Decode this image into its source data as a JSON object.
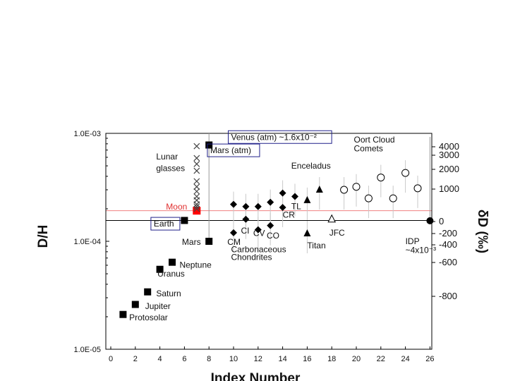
{
  "chart_data": {
    "type": "scatter",
    "title": "",
    "xlabel": "Index Number",
    "ylabel_left": "D/H",
    "ylabel_right": "δD (‰)",
    "x_range": [
      0,
      27
    ],
    "y_range": [
      1e-05,
      0.001
    ],
    "y_scale": "log",
    "x_ticks": [
      0,
      2,
      4,
      6,
      8,
      10,
      12,
      14,
      16,
      18,
      20,
      22,
      24,
      26
    ],
    "y_ticks": [
      {
        "value": 1e-05,
        "label": "1.0E-05"
      },
      {
        "value": 0.0001,
        "label": "1.0E-04"
      },
      {
        "value": 0.001,
        "label": "1.0E-03"
      }
    ],
    "right_ticks": [
      {
        "label": "4000",
        "value": 4000
      },
      {
        "label": "3000",
        "value": 3000
      },
      {
        "label": "2000",
        "value": 2000
      },
      {
        "label": "1000",
        "value": 1000
      },
      {
        "label": "0",
        "value": 0
      },
      {
        "label": "-200",
        "value": -200
      },
      {
        "label": "-400",
        "value": -400
      },
      {
        "label": "-600",
        "value": -600
      },
      {
        "label": "-800",
        "value": -800
      }
    ],
    "reference_lines": [
      {
        "label": "Moon",
        "y": 0.000192,
        "color": "#f08080"
      },
      {
        "label": "Earth",
        "y": 0.000156,
        "color": "#000000"
      }
    ],
    "series": [
      {
        "marker": "square-filled",
        "points": [
          {
            "x": 1,
            "y": 2.1e-05,
            "label": "Protosolar"
          },
          {
            "x": 2,
            "y": 2.6e-05,
            "label": "Jupiter"
          },
          {
            "x": 3,
            "y": 3.4e-05,
            "label": "Saturn"
          },
          {
            "x": 4,
            "y": 5.5e-05,
            "label": "Uranus"
          },
          {
            "x": 5,
            "y": 6.4e-05,
            "label": "Neptune"
          },
          {
            "x": 6,
            "y": 0.000156,
            "label": "Earth"
          },
          {
            "x": 8,
            "y": 0.0001,
            "label": "Mars"
          },
          {
            "x": 8,
            "y": 0.00078,
            "label": "Mars (atm)"
          }
        ]
      },
      {
        "marker": "square-red",
        "points": [
          {
            "x": 7,
            "y": 0.000192,
            "label": "Moon"
          }
        ]
      },
      {
        "marker": "x",
        "points": [
          {
            "x": 7,
            "y": 0.00076
          },
          {
            "x": 7,
            "y": 0.00059
          },
          {
            "x": 7,
            "y": 0.00052
          },
          {
            "x": 7,
            "y": 0.00045
          },
          {
            "x": 7,
            "y": 0.00036
          },
          {
            "x": 7,
            "y": 0.00032
          },
          {
            "x": 7,
            "y": 0.00029
          },
          {
            "x": 7,
            "y": 0.00026
          },
          {
            "x": 7,
            "y": 0.00024
          },
          {
            "x": 7,
            "y": 0.00022
          },
          {
            "x": 7,
            "y": 0.00021
          },
          {
            "x": 7,
            "y": 0.0002
          }
        ]
      },
      {
        "marker": "diamond",
        "points": [
          {
            "x": 10,
            "y": 0.00022
          },
          {
            "x": 10,
            "y": 0.00012
          },
          {
            "x": 11,
            "y": 0.00021
          },
          {
            "x": 11,
            "y": 0.00016
          },
          {
            "x": 12,
            "y": 0.00021
          },
          {
            "x": 12,
            "y": 0.000128
          },
          {
            "x": 13,
            "y": 0.00023
          },
          {
            "x": 13,
            "y": 0.00014
          },
          {
            "x": 14,
            "y": 0.00028
          },
          {
            "x": 14,
            "y": 0.000206
          },
          {
            "x": 15,
            "y": 0.00026
          }
        ]
      },
      {
        "marker": "triangle-filled",
        "points": [
          {
            "x": 16,
            "y": 0.00024
          },
          {
            "x": 16,
            "y": 0.000118
          },
          {
            "x": 17,
            "y": 0.0003
          }
        ]
      },
      {
        "marker": "triangle-open",
        "points": [
          {
            "x": 18,
            "y": 0.00016
          }
        ]
      },
      {
        "marker": "circle-open",
        "points": [
          {
            "x": 19,
            "y": 0.0003
          },
          {
            "x": 20,
            "y": 0.00032
          },
          {
            "x": 21,
            "y": 0.00025
          },
          {
            "x": 22,
            "y": 0.00039
          },
          {
            "x": 23,
            "y": 0.00025
          },
          {
            "x": 24,
            "y": 0.00043
          },
          {
            "x": 25,
            "y": 0.00031
          }
        ]
      },
      {
        "marker": "circle-filled",
        "points": [
          {
            "x": 26,
            "y": 0.000155
          }
        ]
      }
    ],
    "annotations": [
      {
        "text": "Protosolar",
        "x": 1.5,
        "y": 1.85e-05
      },
      {
        "text": "Jupiter",
        "x": 2.8,
        "y": 2.35e-05
      },
      {
        "text": "Saturn",
        "x": 3.7,
        "y": 3.1e-05
      },
      {
        "text": "Uranus",
        "x": 3.8,
        "y": 4.7e-05
      },
      {
        "text": "Neptune",
        "x": 5.6,
        "y": 5.7e-05
      },
      {
        "text": "Earth",
        "x": 3.5,
        "y": 0.000137,
        "boxed": true
      },
      {
        "text": "Moon",
        "x": 4.5,
        "y": 0.000197,
        "color": "#e03030"
      },
      {
        "text": "Mars",
        "x": 5.8,
        "y": 9.3e-05
      },
      {
        "text": "Lunar",
        "x": 3.7,
        "y": 0.000575
      },
      {
        "text": "glasses",
        "x": 3.7,
        "y": 0.000448
      },
      {
        "text": "Mars (atm)",
        "x": 8.1,
        "y": 0.000655,
        "boxed": true
      },
      {
        "text": "Venus (atm) ~1.6x10⁻²",
        "x": 9.8,
        "y": 0.00087,
        "boxed": true
      },
      {
        "text": "CM",
        "x": 9.5,
        "y": 9.3e-05
      },
      {
        "text": "CI",
        "x": 10.6,
        "y": 0.000118
      },
      {
        "text": "CV",
        "x": 11.6,
        "y": 0.000112
      },
      {
        "text": "CO",
        "x": 12.7,
        "y": 0.000106
      },
      {
        "text": "TL",
        "x": 14.7,
        "y": 0.000198
      },
      {
        "text": "CR",
        "x": 14.0,
        "y": 0.000165
      },
      {
        "text": "Carbonaceous",
        "x": 9.8,
        "y": 7.9e-05
      },
      {
        "text": "Chondrites",
        "x": 9.8,
        "y": 6.7e-05
      },
      {
        "text": "Enceladus",
        "x": 14.7,
        "y": 0.00047
      },
      {
        "text": "Titan",
        "x": 16.0,
        "y": 8.6e-05
      },
      {
        "text": "JFC",
        "x": 17.8,
        "y": 0.000113
      },
      {
        "text": "Oort Cloud",
        "x": 19.8,
        "y": 0.000825
      },
      {
        "text": "Comets",
        "x": 19.8,
        "y": 0.00068
      },
      {
        "text": "IDP",
        "x": 24.0,
        "y": 9.4e-05
      },
      {
        "text": "~4x10⁻³",
        "x": 24.0,
        "y": 7.8e-05
      }
    ]
  }
}
